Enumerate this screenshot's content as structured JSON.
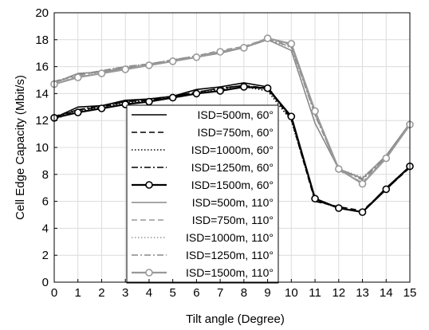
{
  "chart_data": {
    "type": "line",
    "xlabel": "Tilt angle (Degree)",
    "ylabel": "Cell Edge Capacity (Mbit/s)",
    "xlim": [
      0,
      15
    ],
    "ylim": [
      0,
      20
    ],
    "grid": true,
    "legend_position": "center",
    "x": [
      0,
      1,
      2,
      3,
      4,
      5,
      6,
      7,
      8,
      9,
      10,
      11,
      12,
      13,
      14,
      15
    ],
    "x_ticks": [
      "0",
      "1",
      "2",
      "3",
      "4",
      "5",
      "6",
      "7",
      "8",
      "9",
      "10",
      "11",
      "12",
      "13",
      "14",
      "15"
    ],
    "y_ticks": [
      "0",
      "2",
      "4",
      "6",
      "8",
      "10",
      "12",
      "14",
      "16",
      "18",
      "20"
    ],
    "series": [
      {
        "name": "ISD=500m, 60°",
        "color": "#000000",
        "dash": "solid",
        "marker": "none",
        "width": 1.6,
        "values": [
          12.2,
          13.0,
          13.1,
          13.5,
          13.6,
          13.8,
          14.3,
          14.5,
          14.8,
          14.5,
          12.2,
          6.2,
          5.5,
          5.2,
          7.0,
          8.6
        ]
      },
      {
        "name": "ISD=750m, 60°",
        "color": "#000000",
        "dash": "dashed",
        "marker": "none",
        "width": 1.6,
        "values": [
          12.3,
          12.8,
          13.0,
          13.4,
          13.6,
          13.8,
          14.1,
          14.4,
          14.6,
          14.4,
          12.1,
          6.0,
          5.6,
          5.3,
          6.9,
          8.5
        ]
      },
      {
        "name": "ISD=1000m, 60°",
        "color": "#000000",
        "dash": "dotted",
        "marker": "none",
        "width": 1.6,
        "values": [
          12.1,
          12.7,
          13.0,
          13.3,
          13.5,
          13.7,
          14.0,
          14.3,
          14.5,
          14.2,
          12.0,
          6.1,
          5.5,
          5.2,
          7.0,
          8.6
        ]
      },
      {
        "name": "ISD=1250m, 60°",
        "color": "#000000",
        "dash": "dashdot",
        "marker": "none",
        "width": 1.6,
        "values": [
          12.2,
          12.8,
          13.1,
          13.4,
          13.5,
          13.8,
          14.1,
          14.4,
          14.6,
          14.3,
          12.3,
          6.1,
          5.5,
          5.2,
          7.0,
          8.5
        ]
      },
      {
        "name": "ISD=1500m, 60°",
        "color": "#000000",
        "dash": "solid",
        "marker": "circle",
        "width": 2.2,
        "values": [
          12.2,
          12.6,
          12.9,
          13.2,
          13.4,
          13.7,
          14.0,
          14.2,
          14.5,
          14.4,
          12.3,
          6.2,
          5.5,
          5.2,
          6.9,
          8.6
        ]
      },
      {
        "name": "ISD=500m, 110°",
        "color": "#888888",
        "dash": "solid",
        "marker": "none",
        "width": 1.6,
        "values": [
          14.8,
          15.5,
          15.6,
          15.9,
          16.1,
          16.4,
          16.7,
          17.0,
          17.4,
          18.0,
          17.2,
          11.8,
          8.4,
          7.7,
          9.4,
          11.8
        ]
      },
      {
        "name": "ISD=750m, 110°",
        "color": "#999999",
        "dash": "dashed",
        "marker": "none",
        "width": 1.6,
        "values": [
          14.9,
          15.3,
          15.7,
          16.0,
          16.2,
          16.5,
          16.8,
          17.2,
          17.5,
          18.1,
          17.6,
          12.5,
          8.3,
          7.4,
          9.3,
          11.7
        ]
      },
      {
        "name": "ISD=1000m, 110°",
        "color": "#999999",
        "dash": "dotted",
        "marker": "none",
        "width": 1.6,
        "values": [
          14.8,
          15.2,
          15.6,
          15.9,
          16.1,
          16.5,
          16.8,
          17.1,
          17.5,
          18.0,
          17.4,
          12.6,
          8.4,
          7.8,
          9.3,
          11.6
        ]
      },
      {
        "name": "ISD=1250m, 110°",
        "color": "#888888",
        "dash": "dashdot",
        "marker": "none",
        "width": 1.6,
        "values": [
          14.9,
          15.4,
          15.7,
          16.0,
          16.2,
          16.5,
          16.8,
          17.1,
          17.4,
          18.0,
          17.5,
          12.4,
          8.4,
          7.6,
          9.3,
          11.7
        ]
      },
      {
        "name": "ISD=1500m, 110°",
        "color": "#999999",
        "dash": "solid",
        "marker": "circle",
        "width": 2.2,
        "values": [
          14.7,
          15.2,
          15.5,
          15.8,
          16.1,
          16.4,
          16.7,
          17.1,
          17.4,
          18.1,
          17.7,
          12.7,
          8.4,
          7.3,
          9.2,
          11.7
        ]
      }
    ]
  }
}
